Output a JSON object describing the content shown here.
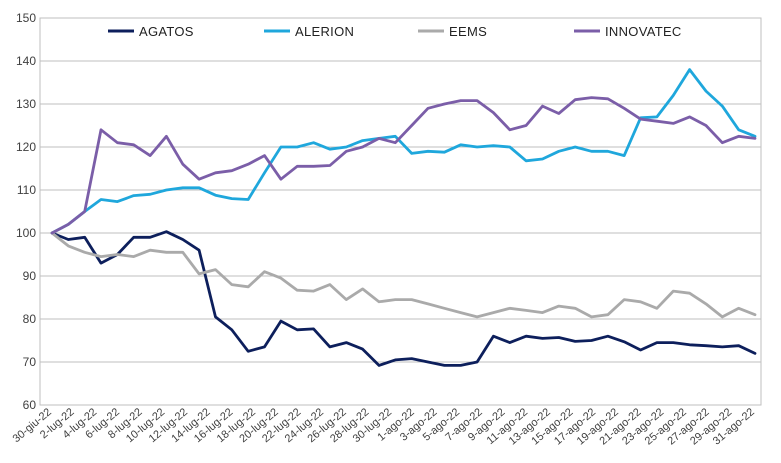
{
  "chart_data": {
    "type": "line",
    "title": "",
    "xlabel": "",
    "ylabel": "",
    "ylim": [
      60,
      150
    ],
    "yticks": [
      60,
      70,
      80,
      90,
      100,
      110,
      120,
      130,
      140,
      150
    ],
    "grid": true,
    "legend_position": "top",
    "x": [
      "30-giu-22",
      "1-lug-22",
      "4-lug-22",
      "5-lug-22",
      "6-lug-22",
      "7-lug-22",
      "8-lug-22",
      "11-lug-22",
      "12-lug-22",
      "13-lug-22",
      "14-lug-22",
      "15-lug-22",
      "18-lug-22",
      "19-lug-22",
      "20-lug-22",
      "21-lug-22",
      "22-lug-22",
      "25-lug-22",
      "26-lug-22",
      "27-lug-22",
      "28-lug-22",
      "29-lug-22",
      "1-ago-22",
      "2-ago-22",
      "3-ago-22",
      "4-ago-22",
      "5-ago-22",
      "8-ago-22",
      "9-ago-22",
      "10-ago-22",
      "11-ago-22",
      "12-ago-22",
      "16-ago-22",
      "17-ago-22",
      "18-ago-22",
      "19-ago-22",
      "22-ago-22",
      "23-ago-22",
      "24-ago-22",
      "25-ago-22",
      "26-ago-22",
      "29-ago-22",
      "30-ago-22",
      "31-ago-22"
    ],
    "x_tick_labels": [
      "30-giu-22",
      "2-lug-22",
      "4-lug-22",
      "6-lug-22",
      "8-lug-22",
      "10-lug-22",
      "12-lug-22",
      "14-lug-22",
      "16-lug-22",
      "18-lug-22",
      "20-lug-22",
      "22-lug-22",
      "24-lug-22",
      "26-lug-22",
      "28-lug-22",
      "30-lug-22",
      "1-ago-22",
      "3-ago-22",
      "5-ago-22",
      "7-ago-22",
      "9-ago-22",
      "11-ago-22",
      "13-ago-22",
      "15-ago-22",
      "17-ago-22",
      "19-ago-22",
      "21-ago-22",
      "23-ago-22",
      "25-ago-22",
      "27-ago-22",
      "29-ago-22",
      "31-ago-22"
    ],
    "series": [
      {
        "name": "AGATOS",
        "color": "#0d1f5c",
        "values": [
          100,
          98.5,
          99,
          93,
          95,
          99,
          99,
          100.3,
          98.5,
          96,
          80.5,
          77.5,
          72.5,
          73.5,
          79.5,
          77.5,
          77.7,
          73.5,
          74.5,
          73,
          69.2,
          70.5,
          70.8,
          70,
          69.2,
          69.2,
          70,
          76,
          74.5,
          76,
          75.5,
          75.7,
          74.8,
          75,
          76,
          74.7,
          72.8,
          74.5,
          74.5,
          74,
          73.8,
          73.5,
          73.8,
          72
        ]
      },
      {
        "name": "ALERION",
        "color": "#1fa7dc",
        "values": [
          100,
          102,
          105,
          107.8,
          107.3,
          108.7,
          109,
          110,
          110.5,
          110.5,
          108.8,
          108,
          107.8,
          114,
          120,
          120,
          121,
          119.5,
          120,
          121.5,
          122,
          122.5,
          118.5,
          119,
          118.8,
          120.5,
          120,
          120.3,
          120,
          116.8,
          117.2,
          119,
          120,
          119,
          119,
          118,
          126.8,
          127,
          132,
          138,
          133,
          129.5,
          124,
          122.5
        ]
      },
      {
        "name": "EEMS",
        "color": "#aaaaaa",
        "values": [
          100,
          97,
          95.5,
          94.5,
          95,
          94.5,
          96,
          95.5,
          95.5,
          90.5,
          91.5,
          88,
          87.5,
          91,
          89.5,
          86.7,
          86.5,
          88,
          84.5,
          87,
          84,
          84.5,
          84.5,
          83.5,
          82.5,
          81.5,
          80.5,
          81.5,
          82.5,
          82,
          81.5,
          83,
          82.5,
          80.5,
          81,
          84.5,
          84,
          82.5,
          86.5,
          86,
          83.5,
          80.5,
          82.5,
          81
        ]
      },
      {
        "name": "INNOVATEC",
        "color": "#7b5ea8",
        "values": [
          100,
          102,
          105,
          124,
          121,
          120.5,
          118,
          122.5,
          116,
          112.5,
          114,
          114.5,
          116,
          118,
          112.5,
          115.5,
          115.5,
          115.7,
          119,
          120,
          122,
          121,
          125,
          129,
          130,
          130.8,
          130.8,
          128,
          124,
          125,
          129.5,
          127.8,
          131,
          131.5,
          131.2,
          129,
          126.5,
          126,
          125.5,
          127,
          125,
          121,
          122.5,
          122
        ]
      }
    ]
  }
}
